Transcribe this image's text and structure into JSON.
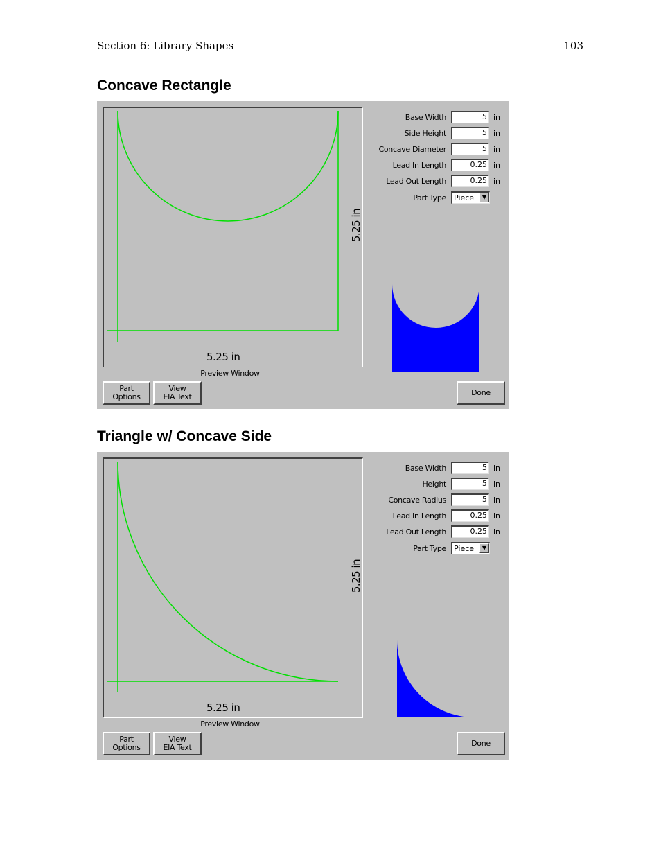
{
  "header": {
    "section": "Section 6: Library Shapes",
    "page_number": "103"
  },
  "sections": [
    {
      "title": "Concave Rectangle",
      "preview": {
        "width_label": "5.25 in",
        "height_label": "5.25 in",
        "caption": "Preview Window",
        "line_color": "#00e000"
      },
      "params": [
        {
          "label": "Base Width",
          "value": "5",
          "unit": "in"
        },
        {
          "label": "Side Height",
          "value": "5",
          "unit": "in"
        },
        {
          "label": "Concave Diameter",
          "value": "5",
          "unit": "in"
        },
        {
          "label": "Lead In Length",
          "value": "0.25",
          "unit": "in"
        },
        {
          "label": "Lead Out Length",
          "value": "0.25",
          "unit": "in"
        }
      ],
      "part_type": {
        "label": "Part Type",
        "value": "Piece"
      },
      "thumbnail_color": "#0000ff",
      "buttons": {
        "part_options": [
          "Part",
          "Options"
        ],
        "view_eia": [
          "View",
          "EIA Text"
        ],
        "done": "Done"
      }
    },
    {
      "title": "Triangle w/ Concave Side",
      "preview": {
        "width_label": "5.25 in",
        "height_label": "5.25 in",
        "caption": "Preview Window",
        "line_color": "#00e000"
      },
      "params": [
        {
          "label": "Base Width",
          "value": "5",
          "unit": "in"
        },
        {
          "label": "Height",
          "value": "5",
          "unit": "in"
        },
        {
          "label": "Concave Radius",
          "value": "5",
          "unit": "in"
        },
        {
          "label": "Lead In Length",
          "value": "0.25",
          "unit": "in"
        },
        {
          "label": "Lead Out Length",
          "value": "0.25",
          "unit": "in"
        }
      ],
      "part_type": {
        "label": "Part Type",
        "value": "Piece"
      },
      "thumbnail_color": "#0000ff",
      "buttons": {
        "part_options": [
          "Part",
          "Options"
        ],
        "view_eia": [
          "View",
          "EIA Text"
        ],
        "done": "Done"
      }
    }
  ]
}
